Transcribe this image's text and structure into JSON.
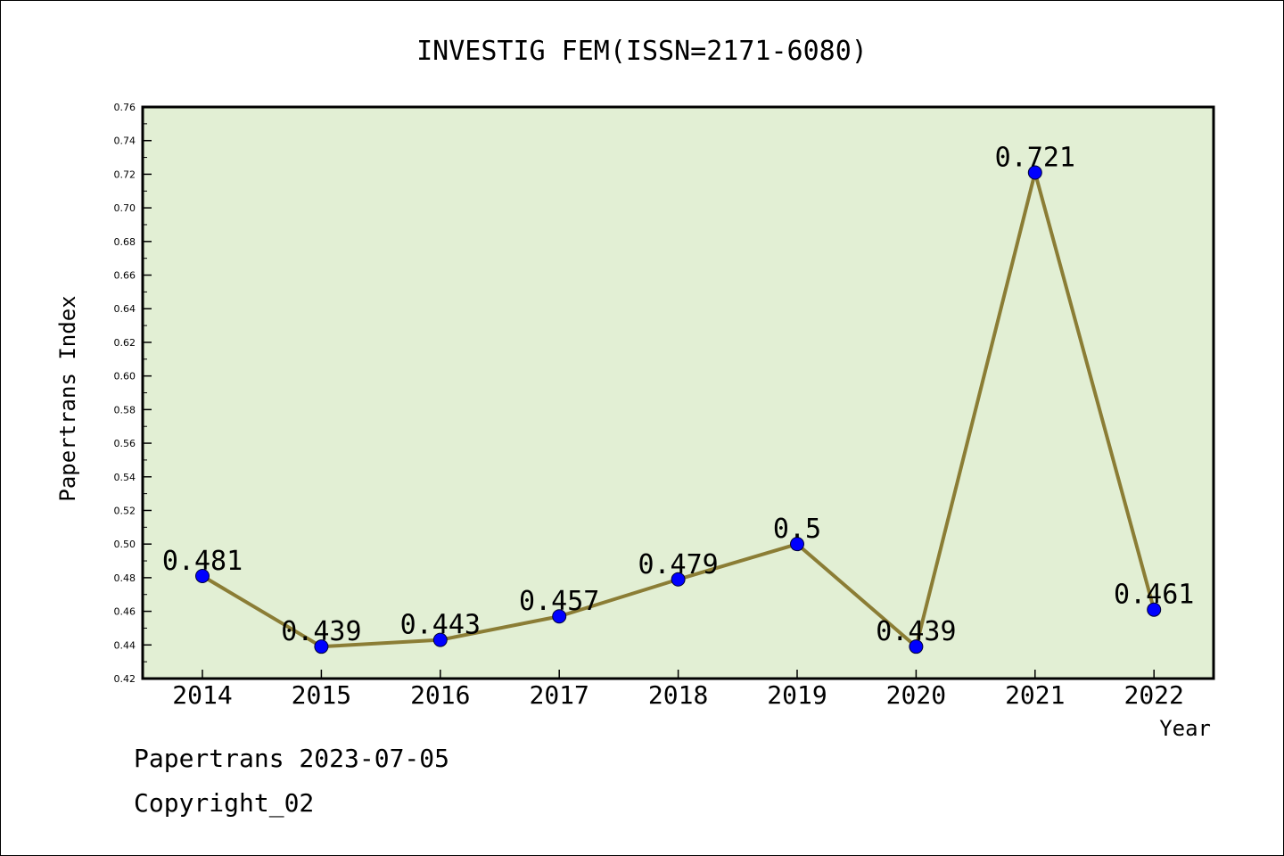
{
  "chart_data": {
    "type": "line",
    "title": "INVESTIG FEM(ISSN=2171-6080)",
    "xlabel": "Year",
    "ylabel": "Papertrans Index",
    "categories": [
      "2014",
      "2015",
      "2016",
      "2017",
      "2018",
      "2019",
      "2020",
      "2021",
      "2022"
    ],
    "values": [
      0.481,
      0.439,
      0.443,
      0.457,
      0.479,
      0.5,
      0.439,
      0.721,
      0.461
    ],
    "data_labels": [
      "0.481",
      "0.439",
      "0.443",
      "0.457",
      "0.479",
      "0.5",
      "0.439",
      "0.721",
      "0.461"
    ],
    "ylim": [
      0.42,
      0.76
    ],
    "yticks": [
      "0.42",
      "0.44",
      "0.46",
      "0.48",
      "0.50",
      "0.52",
      "0.54",
      "0.56",
      "0.58",
      "0.60",
      "0.62",
      "0.64",
      "0.66",
      "0.68",
      "0.70",
      "0.72",
      "0.74",
      "0.76"
    ],
    "grid": false,
    "colors": {
      "plot_background": "#e2efd4",
      "line": "#8b7d35",
      "marker": "#0000ff"
    }
  },
  "footer": {
    "line1": "Papertrans 2023-07-05",
    "line2": "Copyright_02"
  }
}
